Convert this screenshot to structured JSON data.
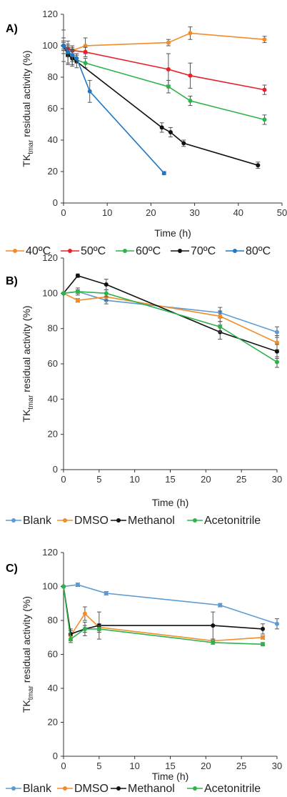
{
  "chart_data": [
    {
      "type": "line",
      "panel_label": "A)",
      "xlabel": "Time (h)",
      "ylabel_main": "TK",
      "ylabel_sub": "tmar",
      "ylabel_rest": " residual activity (%)",
      "xlim": [
        0,
        50
      ],
      "ylim": [
        0,
        120
      ],
      "xticks": [
        "0",
        "10",
        "20",
        "30",
        "40",
        "50"
      ],
      "yticks": [
        "0",
        "20",
        "40",
        "60",
        "80",
        "100",
        "120"
      ],
      "grid": false,
      "legend_position": "bottom",
      "series": [
        {
          "name": "40ºC",
          "color": "#F28C28",
          "x": [
            0,
            1,
            2,
            5,
            24,
            29,
            46
          ],
          "y": [
            100,
            98,
            97,
            100,
            102,
            108,
            104
          ],
          "err": [
            2,
            2,
            2,
            5,
            2,
            4,
            2
          ]
        },
        {
          "name": "50ºC",
          "color": "#E8202A",
          "x": [
            0,
            1,
            2,
            5,
            24,
            29,
            46
          ],
          "y": [
            100,
            98,
            97,
            96,
            85,
            81,
            72
          ],
          "err": [
            3,
            5,
            3,
            3,
            10,
            8,
            3
          ]
        },
        {
          "name": "60ºC",
          "color": "#2DB34A",
          "x": [
            0,
            1,
            2,
            5,
            24,
            29,
            46
          ],
          "y": [
            100,
            95,
            92,
            89,
            74,
            65,
            53
          ],
          "err": [
            5,
            6,
            4,
            3,
            4,
            3,
            3
          ]
        },
        {
          "name": "70ºC",
          "color": "#111111",
          "x": [
            0,
            1,
            2,
            3,
            22.5,
            24.5,
            27.5,
            44.5
          ],
          "y": [
            100,
            94,
            92,
            90,
            48,
            45,
            38,
            24
          ],
          "err": [
            10,
            6,
            5,
            4,
            3,
            3,
            2,
            2
          ]
        },
        {
          "name": "80ºC",
          "color": "#1F77C8",
          "x": [
            0,
            1,
            2,
            3,
            6,
            23
          ],
          "y": [
            100,
            96,
            94,
            92,
            71,
            19
          ],
          "err": [
            3,
            3,
            4,
            3,
            7,
            1
          ]
        }
      ]
    },
    {
      "type": "line",
      "panel_label": "B)",
      "xlabel": "Time (h)",
      "ylabel_main": "TK",
      "ylabel_sub": "tmar",
      "ylabel_rest": " residual activity (%)",
      "xlim": [
        0,
        30
      ],
      "ylim": [
        0,
        120
      ],
      "xticks": [
        "0",
        "5",
        "10",
        "15",
        "20",
        "25",
        "30"
      ],
      "yticks": [
        "0",
        "20",
        "40",
        "60",
        "80",
        "100",
        "120"
      ],
      "grid": false,
      "legend_position": "bottom",
      "series": [
        {
          "name": "Blank",
          "color": "#5B9BD5",
          "x": [
            0,
            2,
            6,
            22,
            30
          ],
          "y": [
            100,
            101,
            96,
            89,
            78
          ],
          "err": [
            0,
            2,
            2,
            3,
            3
          ]
        },
        {
          "name": "DMSO",
          "color": "#F28C28",
          "x": [
            0,
            2,
            6,
            22,
            30
          ],
          "y": [
            100,
            96,
            98,
            87,
            72
          ],
          "err": [
            0,
            1,
            2,
            3,
            4
          ]
        },
        {
          "name": "Methanol",
          "color": "#111111",
          "x": [
            0,
            2,
            6,
            22,
            30
          ],
          "y": [
            100,
            110,
            105,
            78,
            67
          ],
          "err": [
            0,
            1,
            3,
            4,
            4
          ]
        },
        {
          "name": "Acetonitrile",
          "color": "#2DB34A",
          "x": [
            0,
            2,
            6,
            22,
            30
          ],
          "y": [
            100,
            101,
            100,
            81,
            61
          ],
          "err": [
            0,
            1,
            2,
            3,
            3
          ]
        }
      ]
    },
    {
      "type": "line",
      "panel_label": "C)",
      "xlabel": "Time (h)",
      "ylabel_main": "TK",
      "ylabel_sub": "tmar",
      "ylabel_rest": " residual activity (%)",
      "xlim": [
        0,
        30
      ],
      "ylim": [
        0,
        120
      ],
      "xticks": [
        "0",
        "5",
        "10",
        "15",
        "20",
        "25",
        "30"
      ],
      "yticks": [
        "0",
        "20",
        "40",
        "60",
        "80",
        "100",
        "120"
      ],
      "grid": false,
      "legend_position": "bottom",
      "series": [
        {
          "name": "Blank",
          "color": "#5B9BD5",
          "x": [
            0,
            2,
            6,
            22,
            30
          ],
          "y": [
            100,
            101,
            96,
            89,
            78
          ],
          "err": [
            0,
            1,
            1,
            1,
            3
          ]
        },
        {
          "name": "DMSO",
          "color": "#F28C28",
          "x": [
            0,
            1,
            3,
            5,
            21,
            28
          ],
          "y": [
            100,
            71,
            84,
            76,
            68,
            70
          ],
          "err": [
            0,
            3,
            4,
            2,
            1,
            1
          ]
        },
        {
          "name": "Methanol",
          "color": "#111111",
          "x": [
            0,
            1,
            3,
            5,
            21,
            28
          ],
          "y": [
            100,
            72,
            75,
            77,
            77,
            75
          ],
          "err": [
            0,
            3,
            4,
            8,
            8,
            3
          ]
        },
        {
          "name": "Acetonitrile",
          "color": "#2DB34A",
          "x": [
            0,
            1,
            3,
            5,
            21,
            28
          ],
          "y": [
            100,
            69,
            75,
            75,
            67,
            66
          ],
          "err": [
            0,
            2,
            2,
            2,
            1,
            1
          ]
        }
      ]
    }
  ]
}
